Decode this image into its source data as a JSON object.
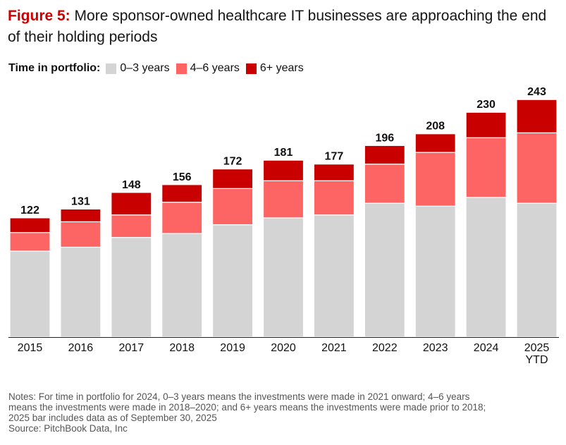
{
  "header": {
    "figure_label": "Figure 5:",
    "title": "More sponsor-owned healthcare IT businesses are approaching the end of their holding periods"
  },
  "legend": {
    "title": "Time in portfolio:",
    "items": [
      {
        "label": "0–3 years",
        "color": "#d4d4d4"
      },
      {
        "label": "4–6 years",
        "color": "#fd6464"
      },
      {
        "label": "6+ years",
        "color": "#c80000"
      }
    ]
  },
  "chart_data": {
    "type": "bar",
    "stacked": true,
    "categories": [
      "2015",
      "2016",
      "2017",
      "2018",
      "2019",
      "2020",
      "2021",
      "2022",
      "2023",
      "2024",
      "2025 YTD"
    ],
    "category_lines": [
      [
        "2015"
      ],
      [
        "2016"
      ],
      [
        "2017"
      ],
      [
        "2018"
      ],
      [
        "2019"
      ],
      [
        "2020"
      ],
      [
        "2021"
      ],
      [
        "2022"
      ],
      [
        "2023"
      ],
      [
        "2024"
      ],
      [
        "2025",
        "YTD"
      ]
    ],
    "series": [
      {
        "name": "0–3 years",
        "color": "#d4d4d4",
        "values": [
          88,
          92,
          102,
          106,
          115,
          122,
          125,
          137,
          134,
          143,
          137
        ]
      },
      {
        "name": "4–6 years",
        "color": "#fd6464",
        "values": [
          19,
          26,
          23,
          32,
          37,
          38,
          35,
          40,
          55,
          61,
          72
        ]
      },
      {
        "name": "6+ years",
        "color": "#c80000",
        "values": [
          15,
          13,
          23,
          18,
          20,
          21,
          17,
          19,
          19,
          26,
          34
        ]
      }
    ],
    "totals": [
      122,
      131,
      148,
      156,
      172,
      181,
      177,
      196,
      208,
      230,
      243
    ],
    "ylim": [
      0,
      250
    ],
    "grid": false,
    "legend_position": "top-left"
  },
  "notes": {
    "lines": [
      "Notes: For time in portfolio for 2024, 0–3 years means the investments were made in 2021 onward; 4–6 years",
      "means the investments were made in 2018–2020; and 6+ years means the investments were made prior to 2018;",
      "2025 bar includes data as of September 30, 2025"
    ],
    "source": "Source: PitchBook Data, Inc"
  }
}
